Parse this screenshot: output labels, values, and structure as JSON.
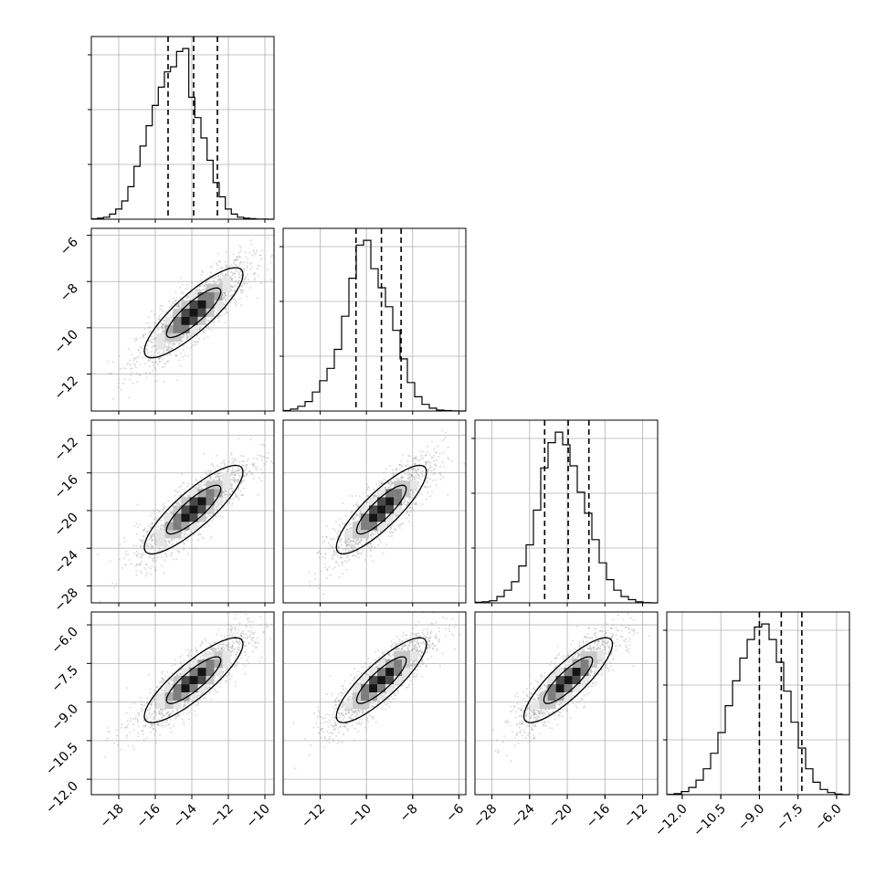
{
  "chart_data": {
    "type": "corner",
    "grid": true,
    "parameters": [
      {
        "index": 0,
        "range": [
          -19.5,
          -9.5
        ],
        "ticks": [
          -18,
          -16,
          -14,
          -12,
          -10
        ],
        "tick_labels": [
          "−18",
          "−16",
          "−14",
          "−12",
          "−10"
        ],
        "quantiles": [
          -15.3,
          -13.9,
          -12.6
        ],
        "hist_counts": [
          0.4,
          1,
          2,
          5,
          10,
          18,
          32,
          52,
          72,
          92,
          112,
          130,
          145,
          150,
          165,
          168,
          120,
          100,
          80,
          58,
          36,
          22,
          10,
          5,
          2,
          1,
          0.5,
          0.2,
          0.1,
          0
        ]
      },
      {
        "index": 1,
        "range": [
          -13.6,
          -5.7
        ],
        "ticks": [
          -12,
          -10,
          -8,
          -6
        ],
        "tick_labels": [
          "−12",
          "−10",
          "−8",
          "−6"
        ],
        "quantiles": [
          -10.45,
          -9.35,
          -8.5
        ],
        "hist_counts": [
          0.5,
          2,
          5,
          10,
          20,
          32,
          45,
          65,
          100,
          140,
          175,
          180,
          150,
          130,
          110,
          85,
          55,
          30,
          15,
          7,
          3,
          1,
          0.5,
          0.1,
          0
        ]
      },
      {
        "index": 2,
        "range": [
          -29.8,
          -10.4
        ],
        "ticks": [
          -28,
          -24,
          -20,
          -16,
          -12
        ],
        "tick_labels": [
          "−28",
          "−24",
          "−20",
          "−16",
          "−12"
        ],
        "quantiles": [
          -22.4,
          -19.9,
          -17.7
        ],
        "hist_counts": [
          0.5,
          1,
          2,
          6,
          12,
          20,
          35,
          55,
          88,
          128,
          152,
          162,
          150,
          130,
          105,
          85,
          60,
          38,
          22,
          12,
          6,
          3,
          1,
          0.3,
          0
        ]
      },
      {
        "index": 3,
        "range": [
          -12.6,
          -5.5
        ],
        "ticks": [
          -12.0,
          -10.5,
          -9.0,
          -7.5,
          -6.0
        ],
        "tick_labels": [
          "−12.0",
          "−10.5",
          "−9.0",
          "−7.5",
          "−6.0"
        ],
        "quantiles": [
          -9.0,
          -8.15,
          -7.35
        ],
        "hist_counts": [
          0.3,
          1,
          3,
          7,
          14,
          25,
          40,
          60,
          86,
          110,
          132,
          150,
          162,
          165,
          150,
          128,
          100,
          70,
          45,
          25,
          12,
          5,
          2,
          0.5,
          0
        ]
      }
    ],
    "row_label_params": [
      1,
      2,
      3
    ],
    "column_label_params": [
      0,
      1,
      2,
      3
    ],
    "correlation": 0.85,
    "contour_levels": [
      0.39,
      0.86
    ]
  }
}
